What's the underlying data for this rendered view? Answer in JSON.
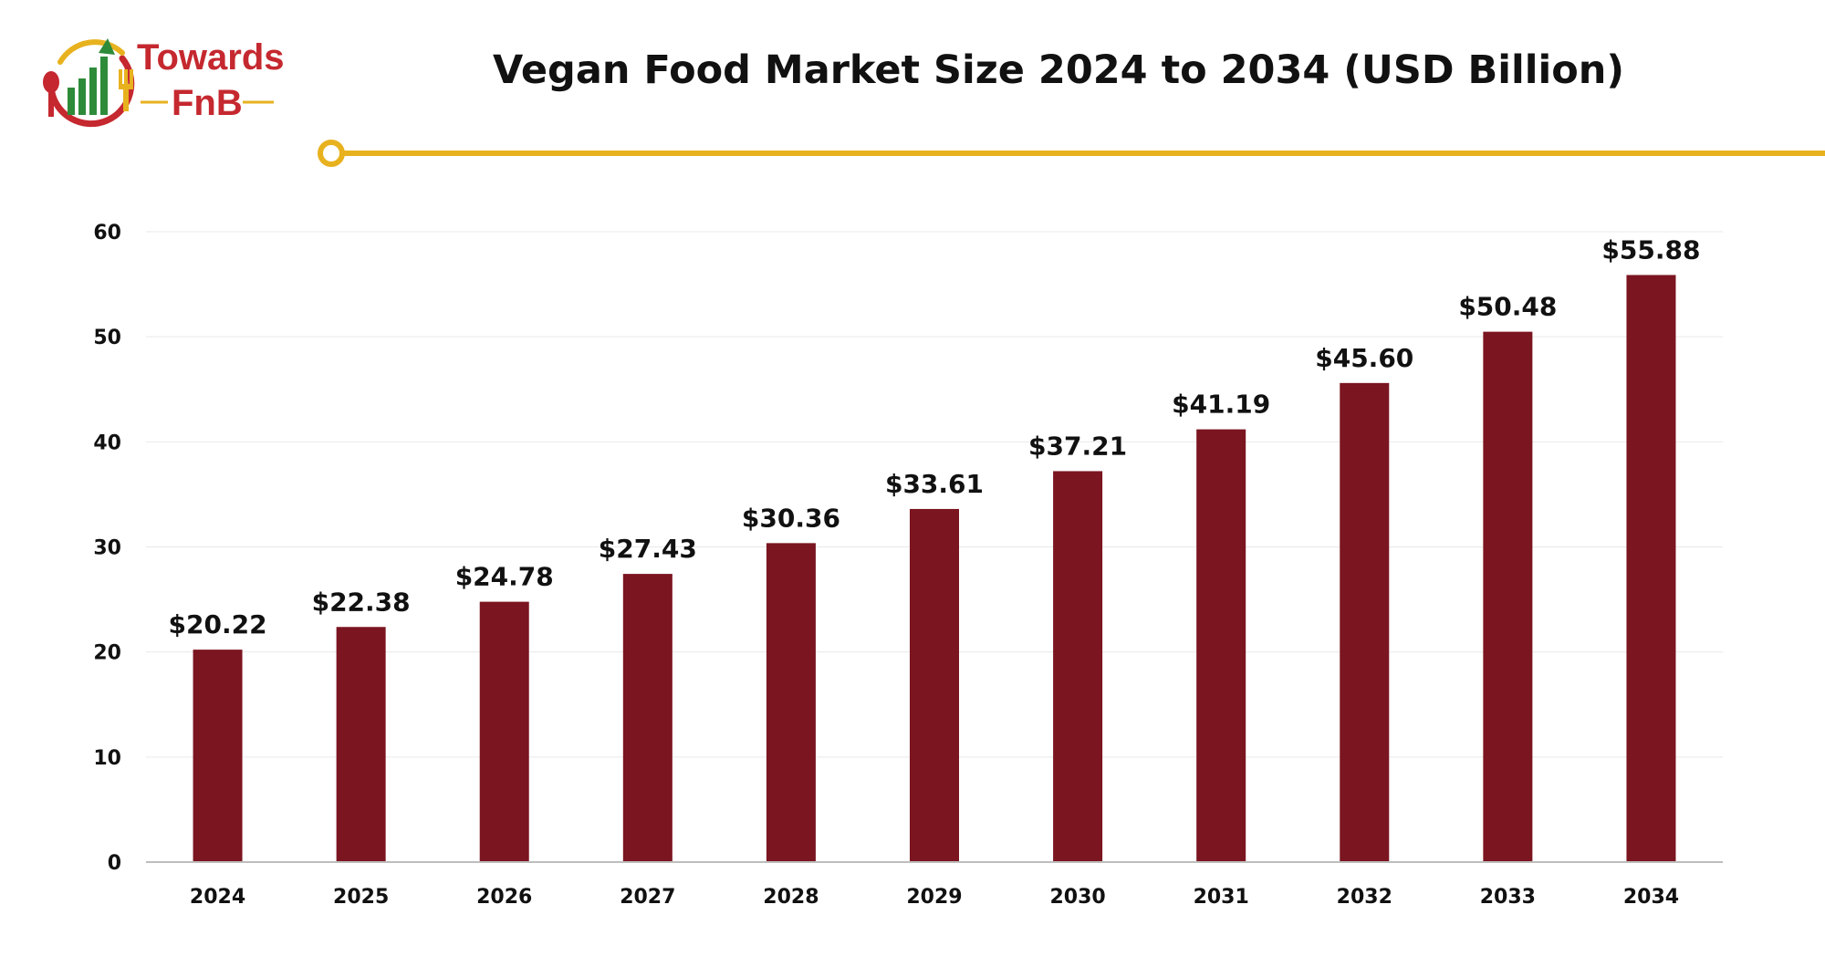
{
  "brand": {
    "line1": "Towards",
    "line2": "FnB",
    "colors": {
      "red": "#c5282f",
      "green": "#2e8b3a",
      "gold": "#e8b21f"
    }
  },
  "header": {
    "title": "Vegan Food Market Size 2024 to 2034 (USD Billion)"
  },
  "theme": {
    "bar_color": "#7b1520",
    "accent_line": "#e8b21f"
  },
  "chart_data": {
    "type": "bar",
    "title": "Vegan Food Market Size 2024 to 2034 (USD Billion)",
    "xlabel": "",
    "ylabel": "",
    "categories": [
      "2024",
      "2025",
      "2026",
      "2027",
      "2028",
      "2029",
      "2030",
      "2031",
      "2032",
      "2033",
      "2034"
    ],
    "values": [
      20.22,
      22.38,
      24.78,
      27.43,
      30.36,
      33.61,
      37.21,
      41.19,
      45.6,
      50.48,
      55.88
    ],
    "value_labels": [
      "$20.22",
      "$22.38",
      "$24.78",
      "$27.43",
      "$30.36",
      "$33.61",
      "$37.21",
      "$41.19",
      "$45.60",
      "$50.48",
      "$55.88"
    ],
    "ylim": [
      0,
      60
    ],
    "yticks": [
      "0",
      "10",
      "20",
      "30",
      "40",
      "50",
      "60"
    ],
    "ytick_values": [
      0,
      10,
      20,
      30,
      40,
      50,
      60
    ],
    "grid": true,
    "legend": "none"
  }
}
